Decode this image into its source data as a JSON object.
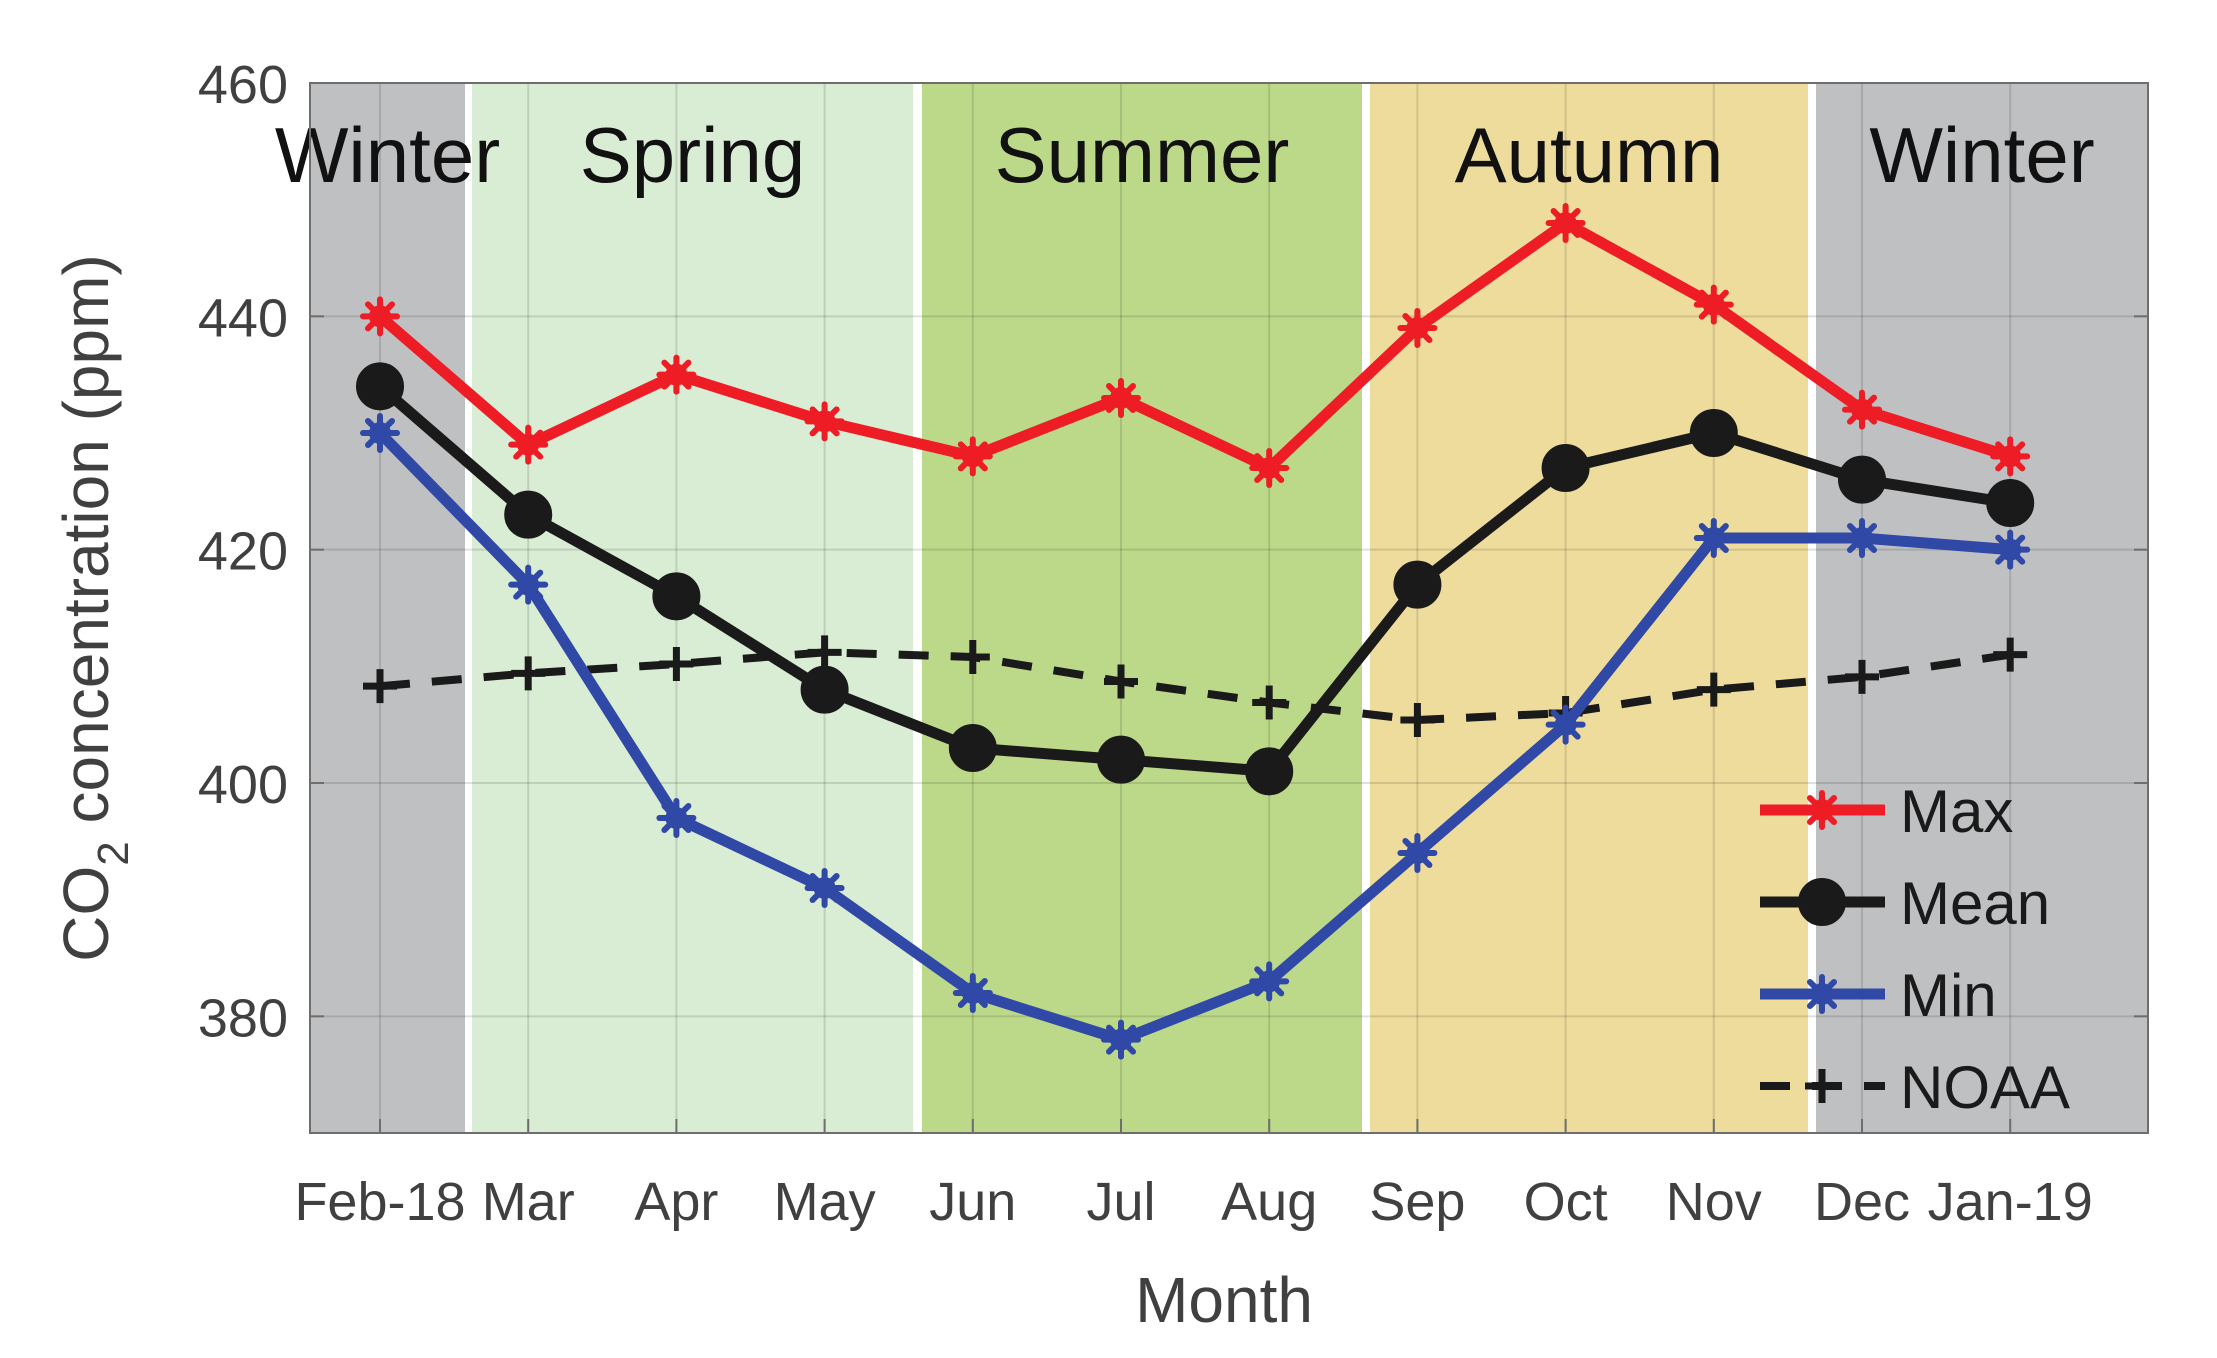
{
  "chart_data": {
    "type": "line",
    "xlabel": "Month",
    "ylabel_main": "CO",
    "ylabel_sub": "2",
    "ylabel_rest": " concentration (ppm)",
    "categories": [
      "Feb-18",
      "Mar",
      "Apr",
      "May",
      "Jun",
      "Jul",
      "Aug",
      "Sep",
      "Oct",
      "Nov",
      "Dec",
      "Jan-19"
    ],
    "ylim": [
      370,
      460
    ],
    "yticks": [
      380,
      400,
      420,
      440,
      460
    ],
    "grid": true,
    "legend_position": "bottom-right",
    "seasons": [
      {
        "label": "Winter",
        "color": "#bfc0c2"
      },
      {
        "label": "Spring",
        "color": "#d9ecd4"
      },
      {
        "label": "Summer",
        "color": "#bcd98a"
      },
      {
        "label": "Autumn",
        "color": "#eddc9c"
      },
      {
        "label": "Winter",
        "color": "#bfc0c2"
      }
    ],
    "series": [
      {
        "name": "Max",
        "color": "#ee1c25",
        "marker": "star",
        "dash": false,
        "values": [
          440,
          429,
          435,
          431,
          428,
          433,
          427,
          439,
          448,
          441,
          432,
          428
        ]
      },
      {
        "name": "Mean",
        "color": "#1a1a1a",
        "marker": "circle",
        "dash": false,
        "values": [
          434,
          423,
          416,
          408,
          403,
          402,
          401,
          417,
          427,
          430,
          426,
          424
        ]
      },
      {
        "name": "Min",
        "color": "#3048a6",
        "marker": "star",
        "dash": false,
        "values": [
          430,
          417,
          397,
          391,
          382,
          378,
          383,
          394,
          405,
          421,
          421,
          420
        ]
      },
      {
        "name": "NOAA",
        "color": "#1a1a1a",
        "marker": "plus",
        "dash": true,
        "values": [
          408.3,
          409.4,
          410.2,
          411.2,
          410.8,
          408.7,
          406.9,
          405.4,
          406.0,
          408.0,
          409.1,
          411.0
        ]
      }
    ]
  }
}
